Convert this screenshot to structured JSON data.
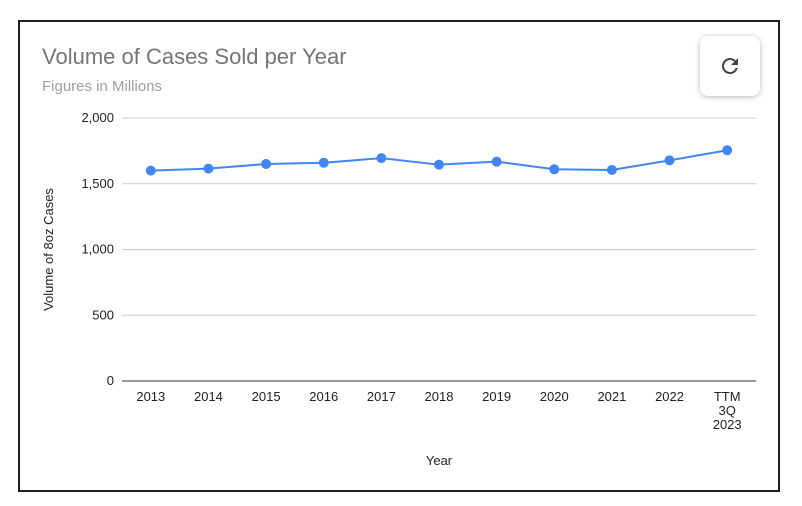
{
  "header": {
    "title": "Volume of Cases Sold per Year",
    "subtitle": "Figures in Millions"
  },
  "controls": {
    "refresh_icon": "refresh-icon"
  },
  "colors": {
    "series": "#4285f4",
    "gridline": "#cccccc",
    "axis": "#333333",
    "title": "#757575",
    "subtitle": "#9e9e9e"
  },
  "chart_data": {
    "type": "line",
    "title": "Volume of Cases Sold per Year",
    "subtitle": "Figures in Millions",
    "xlabel": "Year",
    "ylabel": "Volume of 8oz Cases",
    "ylim": [
      0,
      2000
    ],
    "yticks": [
      "0",
      "500",
      "1,000",
      "1,500",
      "2,000"
    ],
    "ytick_values": [
      0,
      500,
      1000,
      1500,
      2000
    ],
    "grid": true,
    "legend": "none",
    "categories": [
      "2013",
      "2014",
      "2015",
      "2016",
      "2017",
      "2018",
      "2019",
      "2020",
      "2021",
      "2022",
      "TTM 3Q 2023"
    ],
    "category_lines": [
      [
        "2013"
      ],
      [
        "2014"
      ],
      [
        "2015"
      ],
      [
        "2016"
      ],
      [
        "2017"
      ],
      [
        "2018"
      ],
      [
        "2019"
      ],
      [
        "2020"
      ],
      [
        "2021"
      ],
      [
        "2022"
      ],
      [
        "TTM",
        "3Q",
        "2023"
      ]
    ],
    "series": [
      {
        "values": [
          1600,
          1615,
          1650,
          1660,
          1695,
          1645,
          1668,
          1610,
          1605,
          1678,
          1755
        ]
      }
    ]
  }
}
